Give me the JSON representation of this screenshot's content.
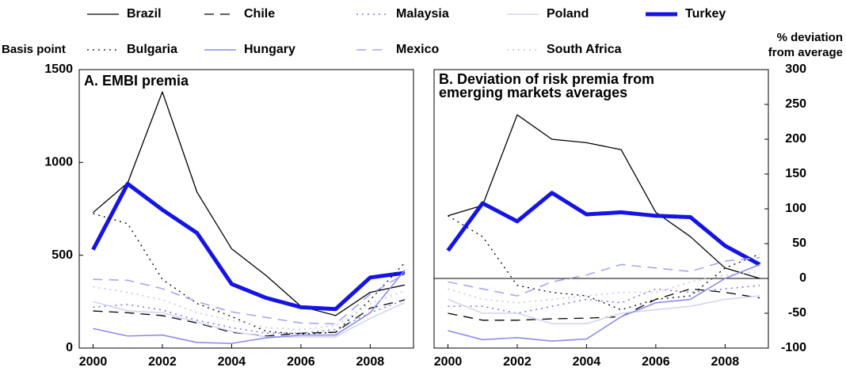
{
  "chart_data": [
    {
      "type": "line",
      "title": "A. EMBI premia",
      "y_label": "Basis point",
      "y_axis_side": "left",
      "x": [
        2000,
        2001,
        2002,
        2003,
        2004,
        2005,
        2006,
        2007,
        2008,
        2009
      ],
      "xlim": [
        1999.6,
        2009.25
      ],
      "xticks": [
        2000,
        2002,
        2004,
        2006,
        2008
      ],
      "ylim": [
        0,
        1500
      ],
      "yticks": [
        0,
        500,
        1000,
        1500
      ],
      "series": [
        {
          "name": "Brazil",
          "color": "#000000",
          "style": "solid",
          "width": 1.3,
          "values": [
            730,
            890,
            1380,
            840,
            535,
            390,
            225,
            175,
            300,
            340
          ]
        },
        {
          "name": "Chile",
          "color": "#000000",
          "style": "dashed",
          "width": 1.3,
          "values": [
            200,
            190,
            175,
            135,
            85,
            65,
            80,
            85,
            215,
            260
          ]
        },
        {
          "name": "Malaysia",
          "color": "#7b7bf0",
          "style": "dotted",
          "width": 1.6,
          "values": [
            220,
            235,
            205,
            150,
            110,
            80,
            80,
            100,
            190,
            260
          ]
        },
        {
          "name": "Poland",
          "color": "#d4d4f4",
          "style": "solid",
          "width": 1.6,
          "values": [
            250,
            200,
            190,
            140,
            90,
            60,
            60,
            60,
            160,
            245
          ]
        },
        {
          "name": "Turkey",
          "color": "#1414e6",
          "style": "solid",
          "width": 5,
          "values": [
            530,
            885,
            745,
            620,
            345,
            270,
            220,
            210,
            380,
            405
          ]
        },
        {
          "name": "Bulgaria",
          "color": "#000000",
          "style": "dotted",
          "width": 1.3,
          "values": [
            725,
            670,
            370,
            240,
            170,
            90,
            75,
            85,
            260,
            460
          ]
        },
        {
          "name": "Hungary",
          "color": "#8c8cf0",
          "style": "solid",
          "width": 1.6,
          "values": [
            105,
            65,
            70,
            30,
            25,
            55,
            70,
            70,
            190,
            420
          ]
        },
        {
          "name": "Mexico",
          "color": "#a6a6f2",
          "style": "dashed",
          "width": 1.6,
          "values": [
            370,
            365,
            320,
            250,
            195,
            165,
            135,
            130,
            290,
            400
          ]
        },
        {
          "name": "South Africa",
          "color": "#d0d0f2",
          "style": "dotted",
          "width": 2,
          "values": [
            330,
            300,
            260,
            190,
            150,
            110,
            100,
            120,
            240,
            310
          ]
        }
      ]
    },
    {
      "type": "line",
      "title": "B. Deviation of risk premia from emerging markets averages",
      "y_label": "% deviation from average",
      "y_axis_side": "right",
      "zero_line": true,
      "x": [
        2000,
        2001,
        2002,
        2003,
        2004,
        2005,
        2006,
        2007,
        2008,
        2009
      ],
      "xlim": [
        1999.6,
        2009.25
      ],
      "xticks": [
        2000,
        2002,
        2004,
        2006,
        2008
      ],
      "ylim": [
        -100,
        300
      ],
      "yticks": [
        -100,
        -50,
        0,
        50,
        100,
        150,
        200,
        250,
        300
      ],
      "series": [
        {
          "color": "#000000",
          "style": "solid",
          "width": 1.3,
          "values": [
            90,
            105,
            235,
            200,
            195,
            185,
            95,
            60,
            15,
            0
          ]
        },
        {
          "color": "#000000",
          "style": "dashed",
          "width": 1.3,
          "values": [
            -50,
            -60,
            -60,
            -58,
            -57,
            -55,
            -30,
            -15,
            -20,
            -28
          ]
        },
        {
          "color": "#7b7bf0",
          "style": "dotted",
          "width": 1.6,
          "values": [
            -40,
            -40,
            -50,
            -40,
            -30,
            -35,
            -15,
            -20,
            -15,
            -10
          ]
        },
        {
          "color": "#d4d4f4",
          "style": "solid",
          "width": 1.6,
          "values": [
            -30,
            -50,
            -50,
            -65,
            -65,
            -50,
            -45,
            -40,
            -30,
            -25
          ]
        },
        {
          "color": "#1414e6",
          "style": "solid",
          "width": 5,
          "values": [
            40,
            108,
            82,
            123,
            92,
            95,
            90,
            88,
            47,
            20
          ]
        },
        {
          "color": "#000000",
          "style": "dotted",
          "width": 1.3,
          "values": [
            90,
            60,
            -10,
            -20,
            -25,
            -45,
            -30,
            -25,
            15,
            35
          ]
        },
        {
          "color": "#8c8cf0",
          "style": "solid",
          "width": 1.6,
          "values": [
            -75,
            -88,
            -85,
            -90,
            -87,
            -55,
            -35,
            -30,
            0,
            20
          ]
        },
        {
          "color": "#a6a6f2",
          "style": "dashed",
          "width": 1.6,
          "values": [
            -5,
            -15,
            -25,
            -5,
            5,
            20,
            15,
            10,
            25,
            30
          ]
        },
        {
          "color": "#d0d0f2",
          "style": "dotted",
          "width": 2,
          "values": [
            -15,
            -30,
            -35,
            -30,
            -25,
            -20,
            -20,
            -5,
            5,
            10
          ]
        }
      ]
    }
  ]
}
